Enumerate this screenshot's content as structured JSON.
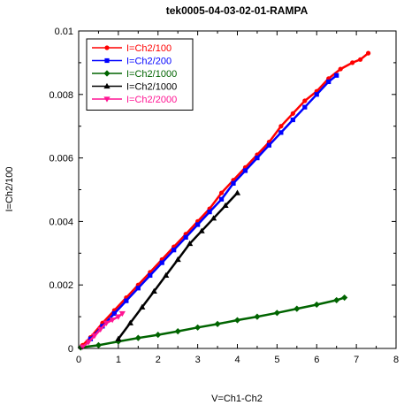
{
  "chart_data": {
    "type": "scatter",
    "title": "tek0005-04-03-02-01-RAMPA",
    "xlabel": "V=Ch1-Ch2",
    "ylabel": "I=Ch2/100",
    "xlim": [
      0,
      8
    ],
    "ylim": [
      0,
      0.01
    ],
    "x_ticks": [
      0,
      1,
      2,
      3,
      4,
      5,
      6,
      7,
      8
    ],
    "x_tick_labels": [
      "0",
      "1",
      "2",
      "3",
      "4",
      "5",
      "6",
      "7",
      "8"
    ],
    "y_ticks": [
      0,
      0.002,
      0.004,
      0.006,
      0.008,
      0.01
    ],
    "y_tick_labels": [
      "0",
      "0.002",
      "0.004",
      "0.006",
      "0.008",
      "0.01"
    ],
    "grid": false,
    "legend_position": "top-left",
    "series": [
      {
        "name": "I=Ch2/100",
        "color": "#ff0000",
        "marker": "circle",
        "points": [
          [
            0.1,
            0.0001
          ],
          [
            0.3,
            0.00035
          ],
          [
            0.6,
            0.0008
          ],
          [
            0.9,
            0.0012
          ],
          [
            1.2,
            0.0016
          ],
          [
            1.5,
            0.002
          ],
          [
            1.8,
            0.0024
          ],
          [
            2.1,
            0.0028
          ],
          [
            2.4,
            0.0032
          ],
          [
            2.7,
            0.0036
          ],
          [
            3.0,
            0.004
          ],
          [
            3.3,
            0.0044
          ],
          [
            3.6,
            0.0049
          ],
          [
            3.9,
            0.0053
          ],
          [
            4.2,
            0.0057
          ],
          [
            4.5,
            0.0061
          ],
          [
            4.8,
            0.0065
          ],
          [
            5.1,
            0.007
          ],
          [
            5.4,
            0.0074
          ],
          [
            5.7,
            0.0078
          ],
          [
            6.0,
            0.0081
          ],
          [
            6.3,
            0.0085
          ],
          [
            6.6,
            0.0088
          ],
          [
            6.9,
            0.009
          ],
          [
            7.1,
            0.0091
          ],
          [
            7.3,
            0.0093
          ]
        ]
      },
      {
        "name": "I=Ch2/200",
        "color": "#0000ff",
        "marker": "square",
        "points": [
          [
            0.3,
            0.0003
          ],
          [
            0.6,
            0.0007
          ],
          [
            0.9,
            0.0011
          ],
          [
            1.2,
            0.0015
          ],
          [
            1.5,
            0.0019
          ],
          [
            1.8,
            0.0023
          ],
          [
            2.1,
            0.0027
          ],
          [
            2.4,
            0.0031
          ],
          [
            2.7,
            0.0035
          ],
          [
            3.0,
            0.0039
          ],
          [
            3.3,
            0.0043
          ],
          [
            3.6,
            0.0047
          ],
          [
            3.9,
            0.0052
          ],
          [
            4.2,
            0.0056
          ],
          [
            4.5,
            0.006
          ],
          [
            4.8,
            0.0064
          ],
          [
            5.1,
            0.0068
          ],
          [
            5.4,
            0.0072
          ],
          [
            5.7,
            0.0076
          ],
          [
            6.0,
            0.008
          ],
          [
            6.3,
            0.0084
          ],
          [
            6.5,
            0.0086
          ]
        ]
      },
      {
        "name": "I=Ch2/1000",
        "color": "#006400",
        "marker": "diamond",
        "points": [
          [
            0.05,
            3e-05
          ],
          [
            0.5,
            0.0001
          ],
          [
            1.0,
            0.00022
          ],
          [
            1.5,
            0.00033
          ],
          [
            2.0,
            0.00043
          ],
          [
            2.5,
            0.00054
          ],
          [
            3.0,
            0.00066
          ],
          [
            3.5,
            0.00077
          ],
          [
            4.0,
            0.00089
          ],
          [
            4.5,
            0.001
          ],
          [
            5.0,
            0.00112
          ],
          [
            5.5,
            0.00125
          ],
          [
            6.0,
            0.00138
          ],
          [
            6.5,
            0.00152
          ],
          [
            6.7,
            0.0016
          ]
        ]
      },
      {
        "name": "I=Ch2/1000",
        "color": "#000000",
        "marker": "triangle-up",
        "points": [
          [
            1.0,
            0.0003
          ],
          [
            1.3,
            0.0008
          ],
          [
            1.6,
            0.0013
          ],
          [
            1.9,
            0.0018
          ],
          [
            2.2,
            0.0023
          ],
          [
            2.5,
            0.0028
          ],
          [
            2.8,
            0.0033
          ],
          [
            3.1,
            0.0037
          ],
          [
            3.4,
            0.0041
          ],
          [
            3.7,
            0.0045
          ],
          [
            4.0,
            0.0049
          ]
        ]
      },
      {
        "name": "I=Ch2/2000",
        "color": "#ff1493",
        "marker": "triangle-down",
        "points": [
          [
            0.1,
            5e-05
          ],
          [
            0.25,
            0.0002
          ],
          [
            0.4,
            0.0004
          ],
          [
            0.55,
            0.0006
          ],
          [
            0.7,
            0.0008
          ],
          [
            0.85,
            0.0009
          ],
          [
            1.0,
            0.001
          ],
          [
            1.1,
            0.0011
          ]
        ]
      }
    ]
  }
}
